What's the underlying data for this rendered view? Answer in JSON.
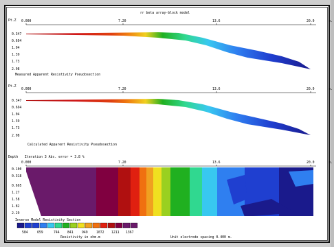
{
  "title": "rr beta array-block model",
  "panels": [
    {
      "id": "measured",
      "y_axis_label": "Pt.Z",
      "x_ticks": [
        "0.000",
        "7.20",
        "13.6",
        "20.0"
      ],
      "x_unit": "m.",
      "y_ticks": [
        "0.347",
        "0.694",
        "1.04",
        "1.39",
        "1.73",
        "2.08"
      ],
      "caption": "Measured Apparent Resistivity Pseudosection"
    },
    {
      "id": "calculated",
      "y_axis_label": "Pt.Z",
      "x_ticks": [
        "0.000",
        "7.20",
        "13.6",
        "20.0"
      ],
      "x_unit": "m.",
      "y_ticks": [
        "0.347",
        "0.694",
        "1.04",
        "1.39",
        "1.73",
        "2.08"
      ],
      "caption": "Calculated Apparent Resistivity Pseudosection"
    },
    {
      "id": "inverse",
      "y_axis_label": "Depth",
      "header_note": "Iteration 3 Abs. error = 3.8 %",
      "x_ticks": [
        "0.000",
        "7.20",
        "13.6",
        "20.0"
      ],
      "x_unit": "m.",
      "y_ticks": [
        "0.100",
        "0.318",
        "0.695",
        "1.27",
        "1.58",
        "1.82",
        "2.29"
      ],
      "caption": "Inverse Model Resistivity Section"
    }
  ],
  "legend": {
    "values": [
      "584",
      "659",
      "744",
      "841",
      "949",
      "1072",
      "1211",
      "1367"
    ],
    "colors": [
      "#1a1a8c",
      "#1f3fd0",
      "#2f7ff0",
      "#38c8f0",
      "#30d890",
      "#20b020",
      "#9ad020",
      "#f0e020",
      "#f0a020",
      "#f07010",
      "#e02010",
      "#b01010",
      "#800040",
      "#6a1a6a"
    ],
    "units_label": "Resistivity in ohm.m",
    "spacing_label": "Unit electrode spacing 0.400 m."
  }
}
